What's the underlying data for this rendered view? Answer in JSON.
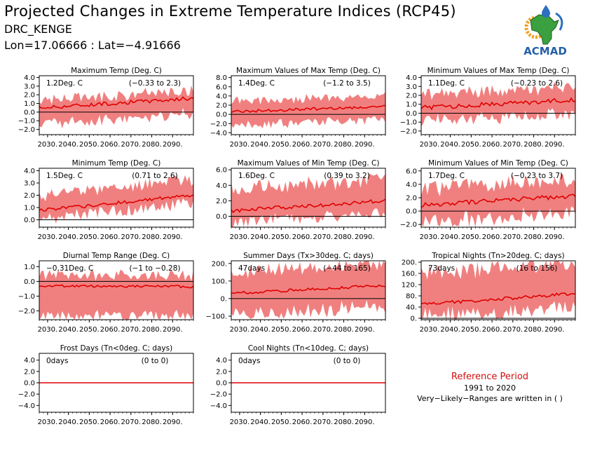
{
  "header": {
    "title": "Projected Changes in Extreme Temperature Indices (RCP45)",
    "station": "DRC_KENGE",
    "coords": "Lon=17.06666 : Lat=−4.91666",
    "logo_text": "ACMAD"
  },
  "reference": {
    "title": "Reference Period",
    "years": "1991 to 2020",
    "note": "Very−Likely−Ranges are written in ( )"
  },
  "colors": {
    "band": "#f08080",
    "line": "#e00000",
    "zero": "#000000"
  },
  "chart_data": [
    {
      "type": "line",
      "title": "Maximum Temp (Deg. C)",
      "stat": "1.2Deg. C",
      "range": "(−0.33 to 2.3)",
      "ylim": [
        -2.6,
        4.2
      ],
      "yticks": [
        4,
        3,
        2,
        1,
        0,
        -1,
        -2
      ],
      "yticklabels": [
        "4.0",
        "3.0",
        "2.0",
        "1.0",
        "0.0",
        "−1.0",
        "−2.0"
      ],
      "xticks": [
        "2030.",
        "2040.",
        "2050.",
        "2060.",
        "2070.",
        "2080.",
        "2090."
      ],
      "xlim": [
        2026,
        2100
      ],
      "trend": {
        "start": 0.5,
        "end": 1.6
      },
      "band": {
        "low": -1.3,
        "high": 2.5,
        "width": 0.55
      },
      "noise": 0.22
    },
    {
      "type": "line",
      "title": "Maximum Values of Max Temp (Deg. C)",
      "stat": "1.4Deg. C",
      "range": "(−1.2 to 3.5)",
      "ylim": [
        -4.4,
        8.4
      ],
      "yticks": [
        8,
        6,
        4,
        2,
        0,
        -2,
        -4
      ],
      "yticklabels": [
        "8.0",
        "6.0",
        "4.0",
        "2.0",
        "0.0",
        "−2.0",
        "−4.0"
      ],
      "xticks": [
        "2030.",
        "2040.",
        "2050.",
        "2060.",
        "2070.",
        "2080.",
        "2090."
      ],
      "xlim": [
        2026,
        2100
      ],
      "trend": {
        "start": 0.6,
        "end": 1.7
      },
      "band": {
        "low": -2.3,
        "high": 3.9,
        "width": 0.9
      },
      "noise": 0.3
    },
    {
      "type": "line",
      "title": "Minimum Values of Max Temp (Deg. C)",
      "stat": "1.1Deg. C",
      "range": "(−0.23 to 2.6)",
      "ylim": [
        -2.4,
        4.2
      ],
      "yticks": [
        4,
        3,
        2,
        1,
        0,
        -1,
        -2
      ],
      "yticklabels": [
        "4.0",
        "3.0",
        "2.0",
        "1.0",
        "0.0",
        "−1.0",
        "−2.0"
      ],
      "xticks": [
        "2030.",
        "2040.",
        "2050.",
        "2060.",
        "2070.",
        "2080.",
        "2090."
      ],
      "xlim": [
        2026,
        2100
      ],
      "trend": {
        "start": 0.6,
        "end": 1.5
      },
      "band": {
        "low": -0.9,
        "high": 3.0,
        "width": 0.6
      },
      "noise": 0.25
    },
    {
      "type": "line",
      "title": "Minimum Temp (Deg. C)",
      "stat": "1.5Deg. C",
      "range": "(0.71 to 2.6)",
      "ylim": [
        -0.6,
        4.2
      ],
      "yticks": [
        4,
        3,
        2,
        1,
        0
      ],
      "yticklabels": [
        "4.0",
        "3.0",
        "2.0",
        "1.0",
        "0.0"
      ],
      "xticks": [
        "2030.",
        "2040.",
        "2050.",
        "2060.",
        "2070.",
        "2080.",
        "2090."
      ],
      "xlim": [
        2026,
        2100
      ],
      "trend": {
        "start": 0.75,
        "end": 2.0
      },
      "band": {
        "low": 0.1,
        "high": 3.3,
        "width": 0.5
      },
      "noise": 0.14
    },
    {
      "type": "line",
      "title": "Maximum Values of Min Temp (Deg. C)",
      "stat": "1.6Deg. C",
      "range": "(0.39 to 3.2)",
      "ylim": [
        -1.4,
        6.2
      ],
      "yticks": [
        6,
        4,
        2,
        0
      ],
      "yticklabels": [
        "6.0",
        "4.0",
        "2.0",
        "0.0"
      ],
      "xticks": [
        "2030.",
        "2040.",
        "2050.",
        "2060.",
        "2070.",
        "2080.",
        "2090."
      ],
      "xlim": [
        2026,
        2100
      ],
      "trend": {
        "start": 0.7,
        "end": 2.0
      },
      "band": {
        "low": -0.8,
        "high": 4.8,
        "width": 0.85
      },
      "noise": 0.25
    },
    {
      "type": "line",
      "title": "Minimum Values of Min Temp (Deg. C)",
      "stat": "1.7Deg. C",
      "range": "(−0.23 to 3.7)",
      "ylim": [
        -2.4,
        6.4
      ],
      "yticks": [
        6,
        4,
        2,
        0,
        -2
      ],
      "yticklabels": [
        "6.0",
        "4.0",
        "2.0",
        "0.0",
        "−2.0"
      ],
      "xticks": [
        "2030.",
        "2040.",
        "2050.",
        "2060.",
        "2070.",
        "2080.",
        "2090."
      ],
      "xlim": [
        2026,
        2100
      ],
      "trend": {
        "start": 0.9,
        "end": 2.3
      },
      "band": {
        "low": -1.7,
        "high": 4.8,
        "width": 1.1
      },
      "noise": 0.35
    },
    {
      "type": "line",
      "title": "Diurnal Temp Range (Deg. C)",
      "stat": "−0.31Deg. C",
      "range": "(−1 to −0.28)",
      "ylim": [
        -2.6,
        1.4
      ],
      "yticks": [
        1,
        0,
        -1,
        -2
      ],
      "yticklabels": [
        "1.0",
        "0.0",
        "−1.0",
        "−2.0"
      ],
      "xticks": [
        "2030.",
        "2040.",
        "2050.",
        "2060.",
        "2070.",
        "2080.",
        "2090."
      ],
      "xlim": [
        2026,
        2100
      ],
      "trend": {
        "start": -0.3,
        "end": -0.35
      },
      "band": {
        "low": -2.3,
        "high": 0.4,
        "width": 0.35
      },
      "noise": 0.08
    },
    {
      "type": "line",
      "title": "Summer Days (Tx>30deg. C; days)",
      "stat": "47days",
      "range": "(−44 to 165)",
      "ylim": [
        -120,
        215
      ],
      "yticks": [
        200,
        100,
        0,
        -100
      ],
      "yticklabels": [
        "200.",
        "100.",
        "0.",
        "−100."
      ],
      "xticks": [
        "2030.",
        "2040.",
        "2050.",
        "2060.",
        "2070.",
        "2080.",
        "2090."
      ],
      "xlim": [
        2026,
        2100
      ],
      "trend": {
        "start": 30,
        "end": 75
      },
      "band": {
        "low": -90,
        "high": 200,
        "width": 40
      },
      "noise": 8
    },
    {
      "type": "line",
      "title": "Tropical Nights (Tn>20deg. C; days)",
      "stat": "73days",
      "range": "(16 to 156)",
      "ylim": [
        -5,
        205
      ],
      "yticks": [
        200,
        160,
        120,
        80,
        40,
        0
      ],
      "yticklabels": [
        "200.",
        "160.",
        "120.",
        "80.",
        "40.",
        "0."
      ],
      "xticks": [
        "2030.",
        "2040.",
        "2050.",
        "2060.",
        "2070.",
        "2080.",
        "2090."
      ],
      "xlim": [
        2026,
        2100
      ],
      "trend": {
        "start": 50,
        "end": 88
      },
      "band": {
        "low": 5,
        "high": 200,
        "width": 30
      },
      "noise": 6
    },
    {
      "type": "line",
      "title": "Frost Days (Tn<0deg. C; days)",
      "stat": "0days",
      "range": "(0 to 0)",
      "ylim": [
        -5.2,
        5.2
      ],
      "yticks": [
        4,
        2,
        0,
        -2,
        -4
      ],
      "yticklabels": [
        "4.0",
        "2.0",
        "0.0",
        "−2.0",
        "−4.0"
      ],
      "xticks": [
        "2030.",
        "2040.",
        "2050.",
        "2060.",
        "2070.",
        "2080.",
        "2090."
      ],
      "xlim": [
        2026,
        2100
      ],
      "trend": {
        "start": 0,
        "end": 0
      },
      "band": {
        "low": 0,
        "high": 0,
        "width": 0
      },
      "noise": 0
    },
    {
      "type": "line",
      "title": "Cool Nights (Tn<10deg. C; days)",
      "stat": "0days",
      "range": "(0 to 0)",
      "ylim": [
        -5.2,
        5.2
      ],
      "yticks": [
        4,
        2,
        0,
        -2,
        -4
      ],
      "yticklabels": [
        "4.0",
        "2.0",
        "0.0",
        "−2.0",
        "−4.0"
      ],
      "xticks": [
        "2030.",
        "2040.",
        "2050.",
        "2060.",
        "2070.",
        "2080.",
        "2090."
      ],
      "xlim": [
        2026,
        2100
      ],
      "trend": {
        "start": 0,
        "end": 0
      },
      "band": {
        "low": 0,
        "high": 0,
        "width": 0
      },
      "noise": 0
    }
  ]
}
